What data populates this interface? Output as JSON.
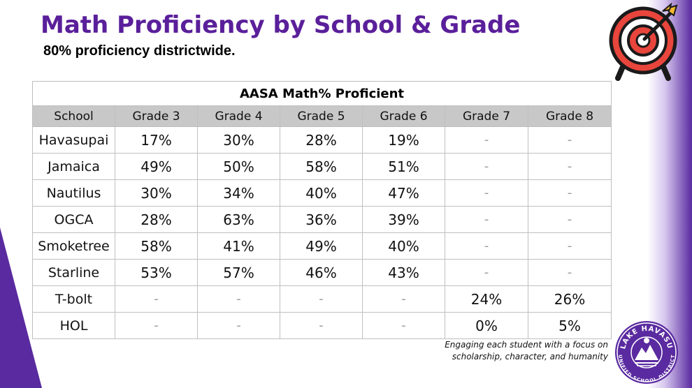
{
  "title": "Math Proficiency by School & Grade",
  "subtitle": "80% proficiency districtwide.",
  "table": {
    "caption": "AASA Math% Proficient",
    "headers": [
      "School",
      "Grade 3",
      "Grade 4",
      "Grade 5",
      "Grade 6",
      "Grade 7",
      "Grade 8"
    ],
    "rows": [
      [
        "Havasupai",
        "17%",
        "30%",
        "28%",
        "19%",
        "-",
        "-"
      ],
      [
        "Jamaica",
        "49%",
        "50%",
        "58%",
        "51%",
        "-",
        "-"
      ],
      [
        "Nautilus",
        "30%",
        "34%",
        "40%",
        "47%",
        "-",
        "-"
      ],
      [
        "OGCA",
        "28%",
        "63%",
        "36%",
        "39%",
        "-",
        "-"
      ],
      [
        "Smoketree",
        "58%",
        "41%",
        "49%",
        "40%",
        "-",
        "-"
      ],
      [
        "Starline",
        "53%",
        "57%",
        "46%",
        "43%",
        "-",
        "-"
      ],
      [
        "T-bolt",
        "-",
        "-",
        "-",
        "-",
        "24%",
        "26%"
      ],
      [
        "HOL",
        "-",
        "-",
        "-",
        "-",
        "0%",
        "5%"
      ]
    ]
  },
  "tagline": {
    "line1": "Engaging each student with a focus on",
    "line2": "scholarship, character, and humanity"
  },
  "logo": {
    "top_text": "LAKE HAVASU",
    "bottom_text": "UNIFIED SCHOOL DISTRICT"
  },
  "colors": {
    "title": "#5a1f9a",
    "accent_purple": "#5a2aa0",
    "header_gray": "#c8c8c8",
    "target_red": "#e8453c"
  },
  "icons": [
    "target-icon",
    "district-seal-logo"
  ]
}
